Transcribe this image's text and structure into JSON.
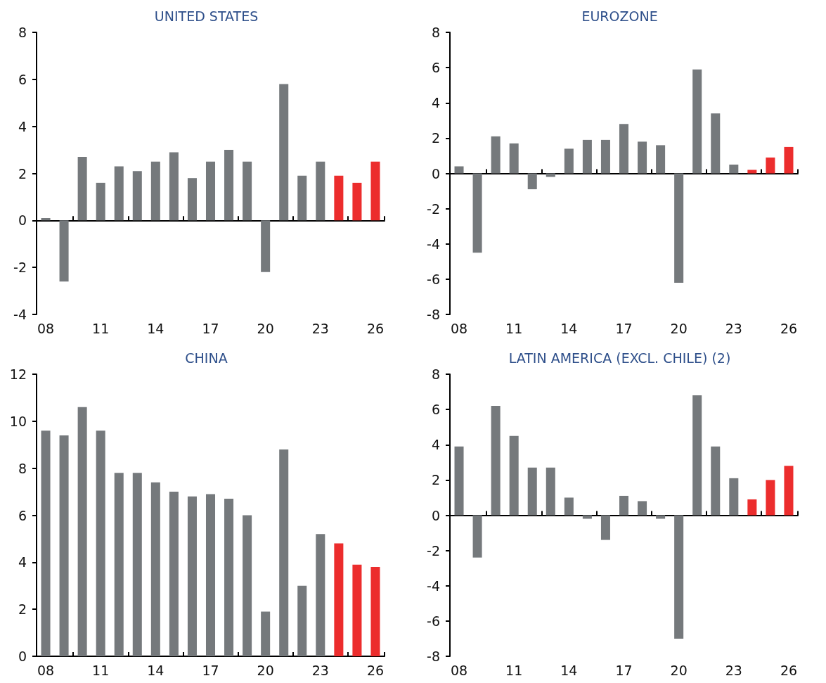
{
  "chart_data": [
    {
      "type": "bar",
      "title": "UNITED STATES",
      "categories": [
        "08",
        null,
        null,
        "11",
        null,
        null,
        "14",
        null,
        null,
        "17",
        null,
        null,
        "20",
        null,
        null,
        "23",
        null,
        null,
        "26"
      ],
      "values": [
        0.1,
        -2.6,
        2.7,
        1.6,
        2.3,
        2.1,
        2.5,
        2.9,
        1.8,
        2.5,
        3.0,
        2.5,
        -2.2,
        5.8,
        1.9,
        2.5,
        1.9,
        1.6,
        2.5
      ],
      "colors": [
        "#75797c",
        "#75797c",
        "#75797c",
        "#75797c",
        "#75797c",
        "#75797c",
        "#75797c",
        "#75797c",
        "#75797c",
        "#75797c",
        "#75797c",
        "#75797c",
        "#75797c",
        "#75797c",
        "#75797c",
        "#75797c",
        "#ec2d2d",
        "#ec2d2d",
        "#ec2d2d"
      ],
      "ylim": [
        -4,
        8
      ],
      "yticks": [
        -4,
        -2,
        0,
        2,
        4,
        6,
        8
      ]
    },
    {
      "type": "bar",
      "title": "EUROZONE",
      "categories": [
        "08",
        null,
        null,
        "11",
        null,
        null,
        "14",
        null,
        null,
        "17",
        null,
        null,
        "20",
        null,
        null,
        "23",
        null,
        null,
        "26"
      ],
      "values": [
        0.4,
        -4.5,
        2.1,
        1.7,
        -0.9,
        -0.2,
        1.4,
        1.9,
        1.9,
        2.8,
        1.8,
        1.6,
        -6.2,
        5.9,
        3.4,
        0.5,
        0.2,
        0.9,
        1.5
      ],
      "colors": [
        "#75797c",
        "#75797c",
        "#75797c",
        "#75797c",
        "#75797c",
        "#75797c",
        "#75797c",
        "#75797c",
        "#75797c",
        "#75797c",
        "#75797c",
        "#75797c",
        "#75797c",
        "#75797c",
        "#75797c",
        "#75797c",
        "#ec2d2d",
        "#ec2d2d",
        "#ec2d2d"
      ],
      "ylim": [
        -8,
        8
      ],
      "yticks": [
        -8,
        -6,
        -4,
        -2,
        0,
        2,
        4,
        6,
        8
      ]
    },
    {
      "type": "bar",
      "title": "CHINA",
      "categories": [
        "08",
        null,
        null,
        "11",
        null,
        null,
        "14",
        null,
        null,
        "17",
        null,
        null,
        "20",
        null,
        null,
        "23",
        null,
        null,
        "26"
      ],
      "values": [
        9.6,
        9.4,
        10.6,
        9.6,
        7.8,
        7.8,
        7.4,
        7.0,
        6.8,
        6.9,
        6.7,
        6.0,
        1.9,
        8.8,
        3.0,
        5.2,
        4.8,
        3.9,
        3.8
      ],
      "colors": [
        "#75797c",
        "#75797c",
        "#75797c",
        "#75797c",
        "#75797c",
        "#75797c",
        "#75797c",
        "#75797c",
        "#75797c",
        "#75797c",
        "#75797c",
        "#75797c",
        "#75797c",
        "#75797c",
        "#75797c",
        "#75797c",
        "#ec2d2d",
        "#ec2d2d",
        "#ec2d2d"
      ],
      "ylim": [
        0,
        12
      ],
      "yticks": [
        0,
        2,
        4,
        6,
        8,
        10,
        12
      ]
    },
    {
      "type": "bar",
      "title": "LATIN AMERICA (EXCL. CHILE) (2)",
      "categories": [
        "08",
        null,
        null,
        "11",
        null,
        null,
        "14",
        null,
        null,
        "17",
        null,
        null,
        "20",
        null,
        null,
        "23",
        null,
        null,
        "26"
      ],
      "values": [
        3.9,
        -2.4,
        6.2,
        4.5,
        2.7,
        2.7,
        1.0,
        -0.2,
        -1.4,
        1.1,
        0.8,
        -0.2,
        -7.0,
        6.8,
        3.9,
        2.1,
        0.9,
        2.0,
        2.8
      ],
      "colors": [
        "#75797c",
        "#75797c",
        "#75797c",
        "#75797c",
        "#75797c",
        "#75797c",
        "#75797c",
        "#75797c",
        "#75797c",
        "#75797c",
        "#75797c",
        "#75797c",
        "#75797c",
        "#75797c",
        "#75797c",
        "#75797c",
        "#ec2d2d",
        "#ec2d2d",
        "#ec2d2d"
      ],
      "ylim": [
        -8,
        8
      ],
      "yticks": [
        -8,
        -6,
        -4,
        -2,
        0,
        2,
        4,
        6,
        8
      ]
    }
  ]
}
